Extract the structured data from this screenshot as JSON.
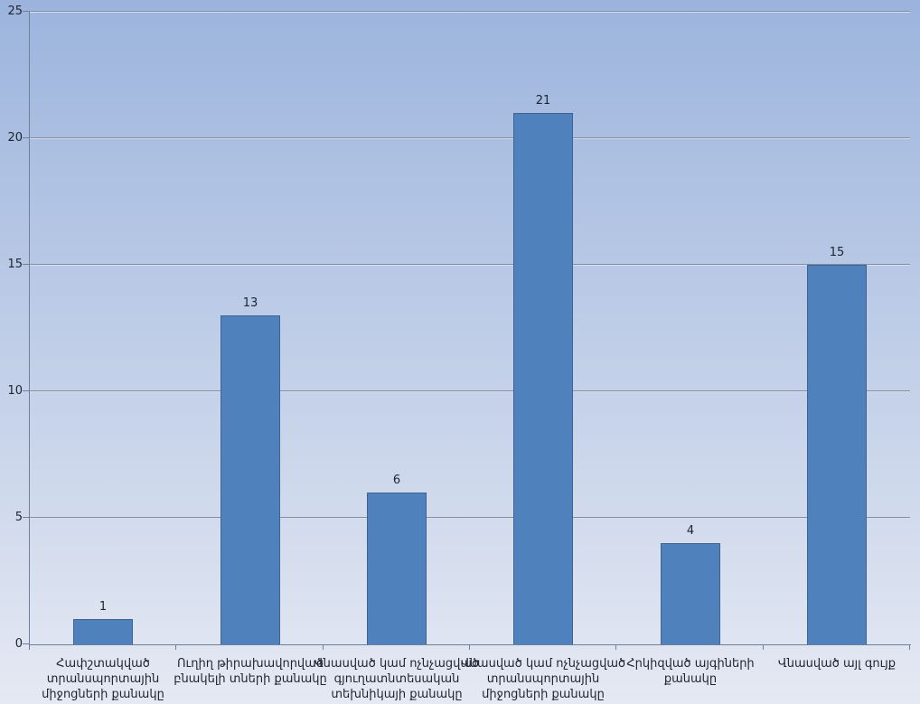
{
  "chart_data": {
    "type": "bar",
    "title": "",
    "xlabel": "",
    "ylabel": "",
    "categories": [
      "Հափշտակված տրանսպորտային միջոցների քանակը",
      "Ուղիղ թիրախավորված բնակելի տների քանակը",
      "Վնասված կամ ոչնչացված գյուղատնտեսական տեխնիկայի քանակը",
      "Վնասված կամ ոչնչացված տրանսպորտային միջոցների քանակը",
      "Հրկիզված այգիների քանակը",
      "Վնասված այլ գույք"
    ],
    "category_lines": [
      [
        "Հափշտակված",
        "տրանսպորտային",
        "միջոցների քանակը"
      ],
      [
        "Ուղիղ թիրախավորված",
        "բնակելի տների քանակը"
      ],
      [
        "Վնասված կամ ոչնչացված",
        "գյուղատնտեսական",
        "տեխնիկայի քանակը"
      ],
      [
        "Վնասված կամ ոչնչացված",
        "տրանսպորտային",
        "միջոցների քանակը"
      ],
      [
        "Հրկիզված այգիների",
        "քանակը"
      ],
      [
        "Վնասված այլ գույք"
      ]
    ],
    "values": [
      1,
      13,
      6,
      21,
      4,
      15
    ],
    "data_labels": [
      "1",
      "13",
      "6",
      "21",
      "4",
      "15"
    ],
    "ylim": [
      0,
      25
    ],
    "yticks": [
      0,
      5,
      10,
      15,
      20,
      25
    ],
    "grid": true,
    "legend_position": "none",
    "colors": {
      "bar_fill": "#4F81BD",
      "bar_border": "#406394",
      "gridline": "#808DA6",
      "gridline_highlight": "#D8E0EE",
      "axis": "#71809A",
      "text": "#1E2430",
      "background_top": "#9CB4DD",
      "background_bottom": "#E5E9F3"
    }
  }
}
